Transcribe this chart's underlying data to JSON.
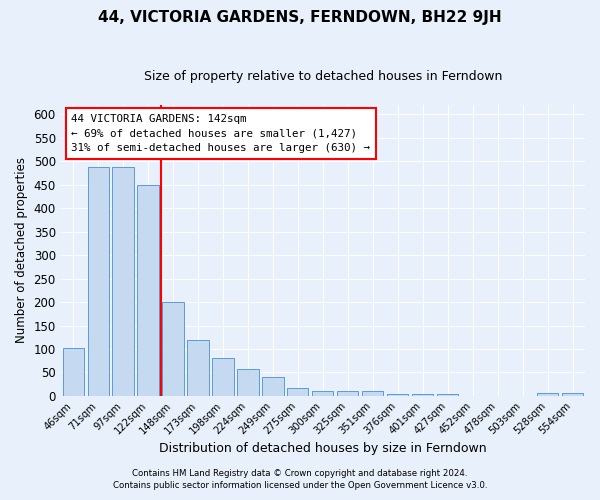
{
  "title": "44, VICTORIA GARDENS, FERNDOWN, BH22 9JH",
  "subtitle": "Size of property relative to detached houses in Ferndown",
  "xlabel": "Distribution of detached houses by size in Ferndown",
  "ylabel": "Number of detached properties",
  "footnote1": "Contains HM Land Registry data © Crown copyright and database right 2024.",
  "footnote2": "Contains public sector information licensed under the Open Government Licence v3.0.",
  "categories": [
    "46sqm",
    "71sqm",
    "97sqm",
    "122sqm",
    "148sqm",
    "173sqm",
    "198sqm",
    "224sqm",
    "249sqm",
    "275sqm",
    "300sqm",
    "325sqm",
    "351sqm",
    "376sqm",
    "401sqm",
    "427sqm",
    "452sqm",
    "478sqm",
    "503sqm",
    "528sqm",
    "554sqm"
  ],
  "values": [
    103,
    487,
    487,
    450,
    200,
    120,
    80,
    57,
    40,
    16,
    10,
    11,
    10,
    5,
    5,
    5,
    0,
    0,
    0,
    7,
    7
  ],
  "bar_color": "#c5d9f0",
  "bar_edge_color": "#5b9bd5",
  "vline_color": "red",
  "annotation_title": "44 VICTORIA GARDENS: 142sqm",
  "annotation_line1": "← 69% of detached houses are smaller (1,427)",
  "annotation_line2": "31% of semi-detached houses are larger (630) →",
  "annotation_box_color": "white",
  "annotation_box_edge_color": "red",
  "ylim": [
    0,
    620
  ],
  "yticks": [
    0,
    50,
    100,
    150,
    200,
    250,
    300,
    350,
    400,
    450,
    500,
    550,
    600
  ],
  "background_color": "#e8f0fb",
  "grid_color": "white",
  "title_fontsize": 11,
  "subtitle_fontsize": 9
}
